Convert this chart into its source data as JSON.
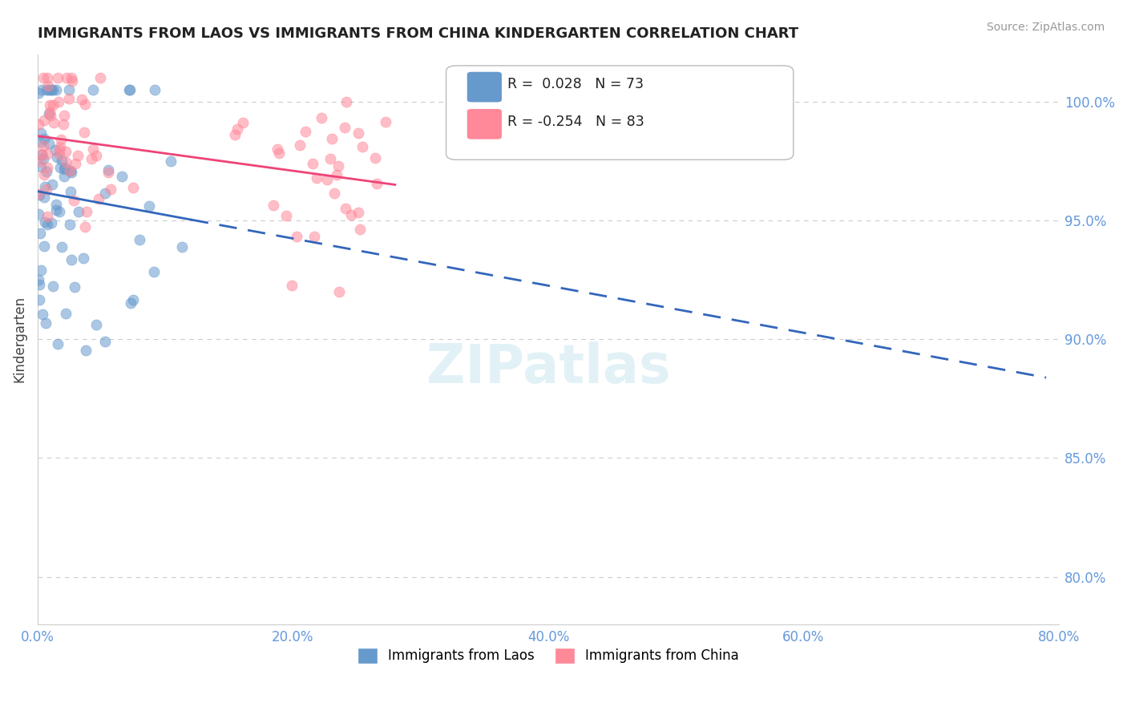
{
  "title": "IMMIGRANTS FROM LAOS VS IMMIGRANTS FROM CHINA KINDERGARTEN CORRELATION CHART",
  "source": "Source: ZipAtlas.com",
  "ylabel_left": "Kindergarten",
  "legend_labels": [
    "Immigrants from Laos",
    "Immigrants from China"
  ],
  "x_tick_labels": [
    "0.0%",
    "20.0%",
    "40.0%",
    "60.0%",
    "80.0%"
  ],
  "x_tick_values": [
    0.0,
    20.0,
    40.0,
    60.0,
    80.0
  ],
  "y_tick_labels": [
    "80.0%",
    "85.0%",
    "90.0%",
    "95.0%",
    "100.0%"
  ],
  "y_tick_values": [
    80.0,
    85.0,
    90.0,
    95.0,
    100.0
  ],
  "xlim": [
    0.0,
    80.0
  ],
  "ylim": [
    78.0,
    102.0
  ],
  "R_laos": 0.028,
  "N_laos": 73,
  "R_china": -0.254,
  "N_china": 83,
  "blue_color": "#6699CC",
  "pink_color": "#FF8899",
  "blue_line_color": "#3366BB",
  "pink_line_color": "#EE4477",
  "title_color": "#222222",
  "axis_label_color": "#444444",
  "tick_color": "#6699DD",
  "grid_color": "#CCCCCC",
  "source_color": "#999999"
}
